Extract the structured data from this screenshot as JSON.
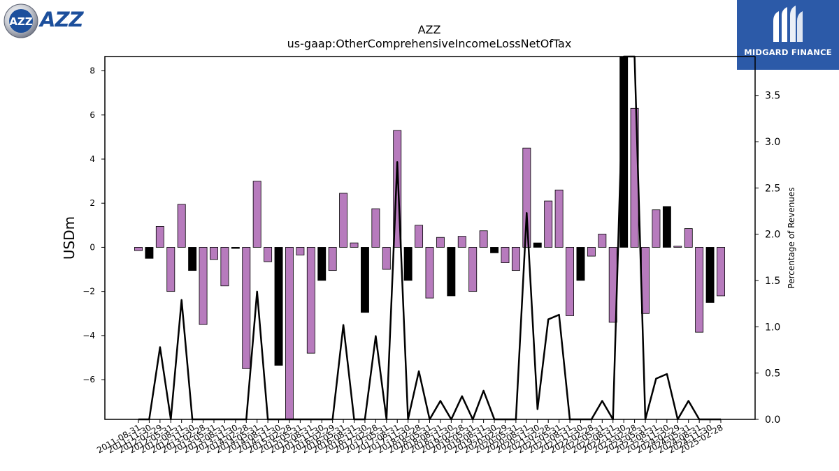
{
  "chart_data": {
    "type": "bar",
    "title": "AZZ",
    "subtitle": "us-gaap:OtherComprehensiveIncomeLossNetOfTax",
    "ylabel": "USDm",
    "y2label": "Percentage of Revenues",
    "ylim": [
      -7.8,
      8.65
    ],
    "y2lim": [
      0.0,
      3.92
    ],
    "yticks": [
      -6,
      -4,
      -2,
      0,
      2,
      4,
      6,
      8
    ],
    "y2ticks": [
      0.0,
      0.5,
      1.0,
      1.5,
      2.0,
      2.5,
      3.0,
      3.5
    ],
    "colors": {
      "positive_fill": "#b77bbd",
      "negative_fill": "#000000",
      "line": "#000000",
      "bar_edge": "#000000"
    },
    "categories": [
      "2011-08-31",
      "2011-11-30",
      "2012-02-29",
      "2012-05-31",
      "2012-08-31",
      "2012-11-30",
      "2013-02-28",
      "2013-05-31",
      "2013-08-31",
      "2013-11-30",
      "2014-02-28",
      "2014-05-31",
      "2014-08-31",
      "2014-11-30",
      "2015-02-28",
      "2015-05-31",
      "2015-08-31",
      "2015-11-30",
      "2016-02-29",
      "2016-05-31",
      "2016-08-31",
      "2016-11-30",
      "2017-02-28",
      "2017-05-31",
      "2017-08-31",
      "2017-11-30",
      "2018-02-28",
      "2018-05-31",
      "2018-08-31",
      "2018-11-30",
      "2019-02-28",
      "2019-05-31",
      "2019-08-31",
      "2019-11-30",
      "2020-02-29",
      "2020-05-31",
      "2020-08-31",
      "2020-11-30",
      "2021-02-28",
      "2021-05-31",
      "2021-08-31",
      "2021-11-30",
      "2022-02-28",
      "2022-05-31",
      "2022-08-31",
      "2022-11-30",
      "2023-02-28",
      "2023-05-31",
      "2023-08-31",
      "2023-11-30",
      "2024-02-29",
      "2024-05-31",
      "2024-08-31",
      "2024-11-30",
      "2025-02-28"
    ],
    "series": [
      {
        "kind": "bar",
        "values": [
          -0.15,
          -0.5,
          0.95,
          -2.0,
          1.95,
          -1.05,
          -3.5,
          -0.55,
          -1.75,
          -0.05,
          -5.5,
          3.0,
          -0.65,
          -5.35,
          -7.8,
          -0.35,
          -4.8,
          -1.5,
          -1.05,
          2.45,
          0.2,
          -2.95,
          1.75,
          -1.0,
          5.3,
          -1.5,
          1.0,
          -2.3,
          0.45,
          -2.2,
          0.5,
          -2.0,
          0.75,
          -0.25,
          -0.7,
          -1.05,
          4.5,
          0.2,
          2.1,
          2.6,
          -3.1,
          -1.5,
          -0.4,
          0.6,
          -3.4,
          8.65,
          6.3,
          -3.0,
          1.7,
          1.85,
          0.05,
          0.85,
          -3.85,
          -2.5,
          -2.2
        ],
        "highlight": [
          false,
          true,
          false,
          false,
          false,
          true,
          false,
          false,
          false,
          true,
          false,
          false,
          false,
          true,
          false,
          false,
          false,
          true,
          false,
          false,
          false,
          true,
          false,
          false,
          false,
          true,
          false,
          false,
          false,
          true,
          false,
          false,
          false,
          true,
          false,
          false,
          false,
          true,
          false,
          false,
          false,
          true,
          false,
          false,
          false,
          true,
          false,
          false,
          false,
          true,
          false,
          false,
          false,
          true,
          false
        ]
      },
      {
        "kind": "line",
        "axis": "right",
        "values": [
          0.0,
          0.0,
          0.78,
          0.0,
          1.29,
          0.0,
          0.0,
          0.0,
          0.0,
          0.0,
          0.0,
          1.38,
          0.0,
          0.0,
          0.0,
          0.0,
          0.0,
          0.0,
          0.0,
          1.02,
          0.0,
          0.0,
          0.9,
          0.0,
          2.78,
          0.0,
          0.52,
          0.0,
          0.2,
          0.0,
          0.25,
          0.0,
          0.31,
          0.0,
          0.0,
          0.0,
          2.23,
          0.11,
          1.08,
          1.13,
          0.0,
          0.0,
          0.0,
          0.2,
          0.0,
          3.92,
          3.92,
          0.0,
          0.44,
          0.49,
          0.0,
          0.2,
          0.0,
          0.0,
          0.0
        ]
      }
    ]
  },
  "logos": {
    "left": {
      "text": "AZZ",
      "badge": "AZZ"
    },
    "right": {
      "text": "MIDGARD FINANCE"
    }
  }
}
